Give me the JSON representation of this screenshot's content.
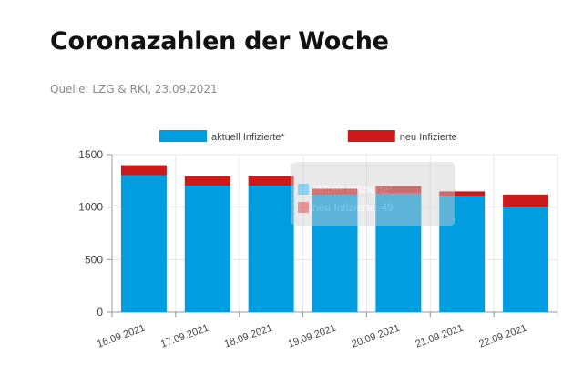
{
  "page": {
    "title": "Coronazahlen der Woche",
    "source": "Quelle: LZG & RKI, 23.09.2021"
  },
  "chart_data": {
    "type": "bar",
    "stacked": true,
    "categories": [
      "16.09.2021",
      "17.09.2021",
      "18.09.2021",
      "19.09.2021",
      "20.09.2021",
      "21.09.2021",
      "22.09.2021"
    ],
    "series": [
      {
        "name": "aktuell Infizierte*",
        "color": "#009ee0",
        "values": [
          1305,
          1205,
          1205,
          1120,
          1130,
          1110,
          1005
        ]
      },
      {
        "name": "neu Infizierte",
        "color": "#cc1a1a",
        "values": [
          95,
          90,
          90,
          55,
          70,
          40,
          115
        ]
      }
    ],
    "ylim": [
      0,
      1500
    ],
    "yticks": [
      0,
      500,
      1000,
      1500
    ],
    "grid": true,
    "legend": "top",
    "tooltip": {
      "visible": true,
      "faded": true,
      "lines": [
        "aktuell Infizierte*",
        "neu Infizierte: 49"
      ]
    }
  }
}
